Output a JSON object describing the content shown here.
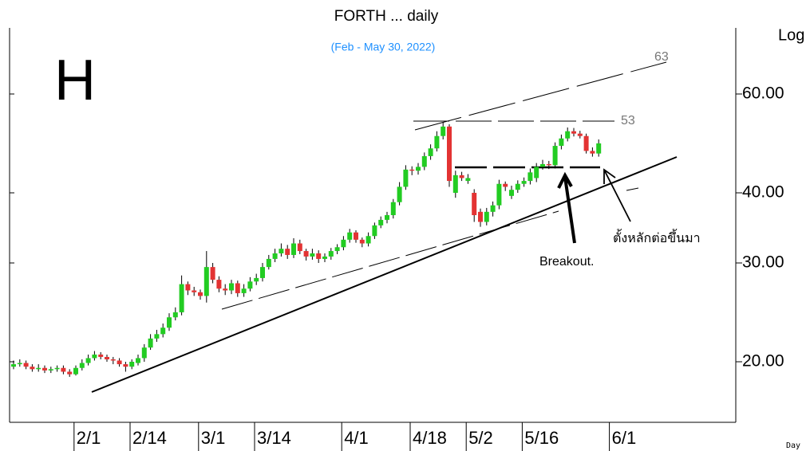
{
  "chart_data": {
    "type": "candlestick",
    "title": "FORTH ... daily",
    "subtitle": "(Feb - May 30, 2022)",
    "y_axis_label": "Log",
    "x_axis_label": "Day",
    "log_scale": true,
    "up_color": "#22cc22",
    "down_color": "#e33333",
    "annotations": [
      "H",
      "Breakout.",
      "ตั้งหลักต่อขึ้นมา",
      "63",
      "53"
    ],
    "ylim": [
      15.6,
      78.7
    ],
    "yticks": [
      {
        "value": 20,
        "label": "20.00"
      },
      {
        "value": 30,
        "label": "30.00"
      },
      {
        "value": 40,
        "label": "40.00"
      },
      {
        "value": 60,
        "label": "60.00"
      }
    ],
    "categories": [
      null,
      null,
      null,
      null,
      null,
      null,
      null,
      null,
      null,
      null,
      null,
      "2/1",
      null,
      null,
      null,
      null,
      null,
      null,
      null,
      null,
      "2/14",
      null,
      null,
      null,
      null,
      null,
      null,
      null,
      null,
      null,
      null,
      "3/1",
      null,
      null,
      null,
      null,
      null,
      null,
      null,
      null,
      "3/14",
      null,
      null,
      null,
      null,
      null,
      null,
      null,
      null,
      null,
      null,
      null,
      null,
      null,
      "4/1",
      null,
      null,
      null,
      null,
      null,
      null,
      null,
      null,
      null,
      null,
      "4/18",
      null,
      null,
      null,
      null,
      null,
      null,
      null,
      null,
      "5/2",
      null,
      null,
      null,
      null,
      null,
      null,
      null,
      null,
      "5/16",
      null,
      null,
      null,
      null,
      null,
      null,
      null,
      null,
      null,
      null,
      null,
      null,
      null,
      "6/1"
    ],
    "open": [
      19.6,
      19.8,
      19.9,
      19.6,
      19.4,
      19.5,
      19.3,
      19.4,
      19.5,
      19.2,
      19.0,
      19.5,
      19.9,
      20.3,
      20.6,
      20.4,
      20.2,
      20.1,
      19.8,
      19.6,
      19.9,
      20.3,
      21.2,
      22.0,
      22.4,
      23.0,
      24.0,
      24.5,
      27.5,
      26.8,
      26.6,
      26.2,
      29.5,
      28.0,
      27.0,
      26.8,
      27.6,
      26.5,
      27.0,
      27.8,
      28.2,
      29.5,
      30.5,
      31.2,
      31.8,
      31.0,
      32.5,
      31.5,
      30.8,
      31.2,
      30.5,
      30.8,
      31.5,
      32.0,
      33.0,
      34.0,
      33.0,
      32.5,
      33.5,
      35.0,
      35.8,
      36.5,
      38.5,
      41.0,
      44.0,
      43.8,
      44.5,
      46.5,
      48.0,
      50.5,
      52.5,
      40.0,
      43.0,
      42.0,
      40.0,
      37.0,
      35.5,
      37.0,
      38.0,
      41.5,
      39.5,
      40.5,
      41.5,
      42.0,
      42.5,
      44.5,
      45.0,
      44.8,
      48.5,
      50.0,
      51.5,
      51.0,
      50.5,
      47.5,
      47.0,
      null,
      null,
      null
    ],
    "high": [
      20.1,
      20.2,
      20.1,
      19.8,
      19.8,
      19.7,
      19.6,
      19.7,
      19.7,
      19.4,
      19.7,
      20.2,
      20.6,
      20.9,
      20.8,
      20.6,
      20.4,
      20.3,
      20.0,
      20.2,
      20.6,
      21.5,
      22.4,
      22.8,
      23.4,
      24.4,
      25.0,
      28.5,
      27.8,
      27.2,
      26.9,
      31.5,
      30.0,
      28.4,
      27.5,
      28.0,
      27.9,
      27.5,
      28.3,
      28.7,
      30.0,
      31.0,
      31.8,
      32.5,
      32.3,
      33.2,
      33.0,
      31.8,
      31.8,
      31.6,
      31.2,
      31.9,
      32.4,
      33.5,
      34.5,
      34.3,
      33.3,
      34.0,
      35.4,
      36.3,
      37.0,
      39.0,
      41.8,
      44.8,
      44.6,
      45.2,
      47.2,
      48.8,
      51.5,
      53.5,
      53.0,
      43.8,
      43.6,
      43.2,
      40.6,
      37.5,
      37.6,
      38.6,
      42.2,
      41.9,
      41.2,
      42.1,
      42.6,
      44.2,
      45.2,
      45.8,
      45.6,
      49.2,
      50.8,
      52.3,
      52.2,
      51.6,
      51.0,
      48.2,
      49.8,
      null,
      null,
      null
    ],
    "low": [
      19.4,
      19.6,
      19.4,
      19.2,
      19.2,
      19.1,
      19.1,
      19.2,
      19.0,
      18.8,
      18.9,
      19.3,
      19.7,
      20.1,
      20.2,
      20.0,
      19.8,
      19.6,
      19.2,
      19.4,
      19.7,
      20.0,
      21.0,
      21.7,
      22.1,
      22.7,
      23.7,
      24.2,
      26.3,
      26.2,
      25.8,
      25.5,
      27.6,
      26.6,
      26.3,
      26.4,
      26.1,
      26.1,
      26.7,
      27.4,
      27.8,
      29.2,
      30.1,
      30.8,
      30.5,
      30.6,
      31.1,
      30.3,
      30.4,
      30.0,
      30.1,
      30.4,
      31.1,
      31.6,
      32.6,
      32.6,
      32.0,
      32.1,
      33.1,
      34.6,
      35.3,
      36.0,
      38.0,
      40.5,
      43.0,
      43.1,
      43.9,
      45.8,
      47.4,
      49.8,
      41.0,
      39.2,
      42.0,
      41.5,
      35.5,
      34.8,
      35.0,
      36.3,
      37.4,
      40.3,
      39.0,
      40.0,
      41.0,
      41.4,
      41.8,
      44.0,
      44.1,
      44.2,
      47.8,
      49.4,
      50.4,
      50.0,
      47.0,
      46.4,
      46.4,
      null,
      null,
      null
    ],
    "close": [
      19.8,
      19.9,
      19.6,
      19.4,
      19.5,
      19.3,
      19.4,
      19.5,
      19.2,
      19.0,
      19.5,
      19.9,
      20.3,
      20.6,
      20.4,
      20.2,
      20.1,
      19.8,
      19.6,
      20.0,
      20.3,
      21.2,
      22.0,
      22.4,
      23.0,
      24.0,
      24.5,
      27.5,
      26.8,
      26.6,
      26.2,
      29.5,
      28.0,
      27.0,
      26.8,
      27.6,
      26.5,
      27.0,
      27.8,
      28.2,
      29.5,
      30.5,
      31.2,
      31.8,
      31.0,
      32.5,
      31.5,
      30.8,
      31.2,
      30.5,
      30.8,
      31.5,
      32.0,
      33.0,
      34.0,
      33.0,
      32.5,
      33.5,
      35.0,
      35.8,
      36.5,
      38.5,
      41.0,
      44.0,
      43.8,
      44.5,
      46.5,
      48.0,
      50.5,
      52.5,
      42.0,
      43.0,
      42.5,
      42.5,
      36.5,
      35.5,
      37.0,
      38.0,
      41.5,
      41.0,
      40.5,
      41.5,
      42.0,
      43.5,
      44.5,
      45.0,
      44.8,
      48.5,
      50.0,
      51.5,
      51.0,
      50.5,
      47.5,
      47.0,
      49.0,
      null,
      null,
      null
    ]
  }
}
